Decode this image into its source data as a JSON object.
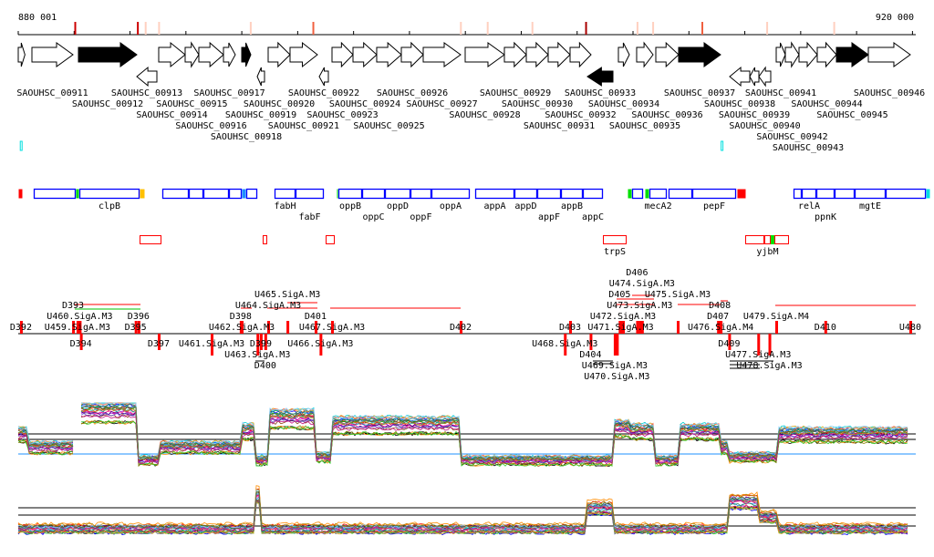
{
  "axis": {
    "start": 880001,
    "end": 920000,
    "start_label": "880 001",
    "end_label": "920 000"
  },
  "colors": {
    "gene_fill": "#000000",
    "feature_blue": "#0000ff",
    "feature_red": "#ff0000",
    "green": "#00e000",
    "cyan": "#00e0e0",
    "yellow": "#ffc000",
    "lightblue": "#1e90ff"
  },
  "genes": [
    {
      "name": "",
      "start": 880000,
      "end": 880300,
      "strand": "+",
      "filled": false
    },
    {
      "name": "SAOUHSC_00911",
      "start": 880612,
      "end": 882448,
      "strand": "+",
      "filled": false
    },
    {
      "name": "SAOUHSC_00912",
      "start": 882693,
      "end": 885304,
      "strand": "+",
      "filled": true
    },
    {
      "name": "SAOUHSC_00913",
      "start": 885304,
      "end": 886202,
      "strand": "-",
      "filled": false
    },
    {
      "name": "SAOUHSC_00914",
      "start": 886283,
      "end": 887466,
      "strand": "+",
      "filled": false
    },
    {
      "name": "SAOUHSC_00915",
      "start": 887466,
      "end": 888078,
      "strand": "+",
      "filled": false
    },
    {
      "name": "SAOUHSC_00916",
      "start": 888078,
      "end": 889180,
      "strand": "+",
      "filled": false
    },
    {
      "name": "SAOUHSC_00917",
      "start": 889180,
      "end": 889710,
      "strand": "+",
      "filled": false
    },
    {
      "name": "SAOUHSC_00918",
      "start": 889996,
      "end": 890404,
      "strand": "+",
      "filled": true
    },
    {
      "name": "SAOUHSC_00919",
      "start": 890690,
      "end": 891016,
      "strand": "-",
      "filled": false
    },
    {
      "name": "SAOUHSC_00920",
      "start": 891179,
      "end": 892158,
      "strand": "+",
      "filled": false
    },
    {
      "name": "SAOUHSC_00921",
      "start": 892158,
      "end": 893382,
      "strand": "+",
      "filled": false
    },
    {
      "name": "SAOUHSC_00922",
      "start": 893464,
      "end": 893872,
      "strand": "-",
      "filled": false
    },
    {
      "name": "SAOUHSC_00923",
      "start": 894035,
      "end": 894974,
      "strand": "+",
      "filled": false
    },
    {
      "name": "SAOUHSC_00924",
      "start": 894974,
      "end": 896034,
      "strand": "+",
      "filled": false
    },
    {
      "name": "SAOUHSC_00925",
      "start": 896034,
      "end": 897136,
      "strand": "+",
      "filled": false
    },
    {
      "name": "SAOUHSC_00926",
      "start": 897136,
      "end": 898115,
      "strand": "+",
      "filled": false
    },
    {
      "name": "SAOUHSC_00927",
      "start": 898115,
      "end": 899788,
      "strand": "+",
      "filled": false
    },
    {
      "name": "SAOUHSC_00928",
      "start": 899992,
      "end": 901746,
      "strand": "+",
      "filled": false
    },
    {
      "name": "SAOUHSC_00929",
      "start": 901746,
      "end": 902726,
      "strand": "+",
      "filled": false
    },
    {
      "name": "SAOUHSC_00930",
      "start": 902726,
      "end": 903705,
      "strand": "+",
      "filled": false
    },
    {
      "name": "SAOUHSC_00931",
      "start": 903705,
      "end": 904684,
      "strand": "+",
      "filled": false
    },
    {
      "name": "SAOUHSC_00932",
      "start": 904684,
      "end": 905622,
      "strand": "+",
      "filled": false
    },
    {
      "name": "SAOUHSC_00933",
      "start": 905459,
      "end": 906602,
      "strand": "-",
      "filled": true
    },
    {
      "name": "SAOUHSC_00934",
      "start": 906846,
      "end": 907336,
      "strand": "+",
      "filled": false
    },
    {
      "name": "SAOUHSC_00935",
      "start": 907662,
      "end": 908397,
      "strand": "+",
      "filled": false
    },
    {
      "name": "SAOUHSC_00936",
      "start": 908519,
      "end": 909539,
      "strand": "+",
      "filled": false
    },
    {
      "name": "SAOUHSC_00937",
      "start": 909539,
      "end": 911416,
      "strand": "+",
      "filled": true
    },
    {
      "name": "SAOUHSC_00938",
      "start": 911824,
      "end": 912722,
      "strand": "-",
      "filled": false
    },
    {
      "name": "SAOUHSC_00939",
      "start": 912722,
      "end": 913130,
      "strand": "-",
      "filled": false
    },
    {
      "name": "SAOUHSC_00940",
      "start": 913130,
      "end": 913660,
      "strand": "-",
      "filled": false
    },
    {
      "name": "SAOUHSC_00941",
      "start": 913905,
      "end": 914313,
      "strand": "+",
      "filled": false
    },
    {
      "name": "SAOUHSC_00942",
      "start": 914313,
      "end": 914925,
      "strand": "+",
      "filled": false
    },
    {
      "name": "SAOUHSC_00943",
      "start": 914925,
      "end": 915741,
      "strand": "+",
      "filled": false
    },
    {
      "name": "SAOUHSC_00944",
      "start": 915741,
      "end": 916598,
      "strand": "+",
      "filled": false
    },
    {
      "name": "SAOUHSC_00945",
      "start": 916598,
      "end": 918026,
      "strand": "+",
      "filled": true
    },
    {
      "name": "SAOUHSC_00946",
      "start": 918026,
      "end": 919902,
      "strand": "+",
      "filled": false
    }
  ],
  "markers_top": [
    {
      "pos": 882550,
      "color": "#cc0000"
    },
    {
      "pos": 885350,
      "color": "#cc0000"
    },
    {
      "pos": 885700,
      "color": "#ffd0c0"
    },
    {
      "pos": 886300,
      "color": "#ffd0c0"
    },
    {
      "pos": 890400,
      "color": "#ffd0c0"
    },
    {
      "pos": 893200,
      "color": "#f06040"
    },
    {
      "pos": 899800,
      "color": "#ffd0c0"
    },
    {
      "pos": 901000,
      "color": "#ffd0c0"
    },
    {
      "pos": 903000,
      "color": "#ffd0c0"
    },
    {
      "pos": 905400,
      "color": "#aa0000"
    },
    {
      "pos": 907700,
      "color": "#ffd0c0"
    },
    {
      "pos": 908400,
      "color": "#ffd0c0"
    },
    {
      "pos": 910600,
      "color": "#f06040"
    },
    {
      "pos": 913500,
      "color": "#ffd0c0"
    },
    {
      "pos": 916500,
      "color": "#ffd0c0"
    }
  ],
  "cyan_marks": [
    880050,
    911400
  ],
  "features": [
    {
      "label": "",
      "start": 880000,
      "end": 880204,
      "color": "#ff0000",
      "solid": true
    },
    {
      "label": "",
      "start": 880694,
      "end": 882570,
      "color": "#0000ff",
      "solid": false
    },
    {
      "label": "",
      "start": 882570,
      "end": 882734,
      "color": "#00e000",
      "solid": true
    },
    {
      "label": "clpB",
      "start": 882734,
      "end": 885426,
      "color": "#0000ff",
      "solid": false
    },
    {
      "label": "",
      "start": 885426,
      "end": 885671,
      "color": "#ffc000",
      "solid": true
    },
    {
      "label": "",
      "start": 886446,
      "end": 887630,
      "color": "#0000ff",
      "solid": false
    },
    {
      "label": "",
      "start": 887630,
      "end": 888282,
      "color": "#0000ff",
      "solid": false
    },
    {
      "label": "",
      "start": 888282,
      "end": 889425,
      "color": "#0000ff",
      "solid": false
    },
    {
      "label": "",
      "start": 889425,
      "end": 889996,
      "color": "#0000ff",
      "solid": false
    },
    {
      "label": "",
      "start": 889996,
      "end": 890200,
      "color": "#1e90ff",
      "solid": true
    },
    {
      "label": "",
      "start": 890200,
      "end": 890690,
      "color": "#0000ff",
      "solid": false
    },
    {
      "label": "fabH",
      "start": 891465,
      "end": 892403,
      "color": "#0000ff",
      "solid": false
    },
    {
      "label": "fabF",
      "start": 892403,
      "end": 893668,
      "color": "#0000ff",
      "solid": false
    },
    {
      "label": "",
      "start": 894239,
      "end": 894321,
      "color": "#00e000",
      "solid": true
    },
    {
      "label": "oppB",
      "start": 894321,
      "end": 895382,
      "color": "#0000ff",
      "solid": false
    },
    {
      "label": "oppC",
      "start": 895382,
      "end": 896402,
      "color": "#0000ff",
      "solid": false
    },
    {
      "label": "oppD",
      "start": 896402,
      "end": 897544,
      "color": "#0000ff",
      "solid": false
    },
    {
      "label": "oppF",
      "start": 897544,
      "end": 898482,
      "color": "#0000ff",
      "solid": false
    },
    {
      "label": "oppA",
      "start": 898482,
      "end": 900196,
      "color": "#0000ff",
      "solid": false
    },
    {
      "label": "appA",
      "start": 900441,
      "end": 902195,
      "color": "#0000ff",
      "solid": false
    },
    {
      "label": "appD",
      "start": 902195,
      "end": 903215,
      "color": "#0000ff",
      "solid": false
    },
    {
      "label": "appF",
      "start": 903215,
      "end": 904276,
      "color": "#0000ff",
      "solid": false
    },
    {
      "label": "appB",
      "start": 904276,
      "end": 905255,
      "color": "#0000ff",
      "solid": false
    },
    {
      "label": "appC",
      "start": 905255,
      "end": 906153,
      "color": "#0000ff",
      "solid": false
    },
    {
      "label": "",
      "start": 907254,
      "end": 907458,
      "color": "#00e000",
      "solid": true
    },
    {
      "label": "",
      "start": 907458,
      "end": 907948,
      "color": "#0000ff",
      "solid": false
    },
    {
      "label": "",
      "start": 908030,
      "end": 908234,
      "color": "#00e000",
      "solid": true
    },
    {
      "label": "mecA2",
      "start": 908234,
      "end": 909009,
      "color": "#0000ff",
      "solid": false
    },
    {
      "label": "",
      "start": 909090,
      "end": 910151,
      "color": "#0000ff",
      "solid": false
    },
    {
      "label": "pepF",
      "start": 910151,
      "end": 912110,
      "color": "#0000ff",
      "solid": false
    },
    {
      "label": "",
      "start": 912150,
      "end": 912558,
      "color": "#ff0000",
      "solid": true
    },
    {
      "label": "",
      "start": 914680,
      "end": 915047,
      "color": "#0000ff",
      "solid": false
    },
    {
      "label": "relA",
      "start": 915047,
      "end": 915700,
      "color": "#0000ff",
      "solid": false
    },
    {
      "label": "ppnK",
      "start": 915700,
      "end": 916516,
      "color": "#0000ff",
      "solid": false
    },
    {
      "label": "",
      "start": 916516,
      "end": 917414,
      "color": "#0000ff",
      "solid": false
    },
    {
      "label": "mgtE",
      "start": 917414,
      "end": 918801,
      "color": "#0000ff",
      "solid": false
    },
    {
      "label": "",
      "start": 918801,
      "end": 920600,
      "color": "#0000ff",
      "solid": false
    },
    {
      "label": "",
      "start": 920600,
      "end": 920800,
      "color": "#00e0e0",
      "solid": true
    }
  ],
  "rna_features": [
    {
      "label": "",
      "start": 885426,
      "end": 886406,
      "color": "#ff0000"
    },
    {
      "label": "",
      "start": 890934,
      "end": 891138,
      "color": "#ff0000"
    },
    {
      "label": "",
      "start": 893750,
      "end": 894158,
      "color": "#ff0000"
    },
    {
      "label": "trpS",
      "start": 906153,
      "end": 907214,
      "color": "#ff0000"
    },
    {
      "label": "",
      "start": 912518,
      "end": 913374,
      "color": "#ff0000"
    },
    {
      "label": "yjbM",
      "start": 913374,
      "end": 913660,
      "color": "#ff0000"
    },
    {
      "label": "",
      "start": 913660,
      "end": 913823,
      "color": "#00e000"
    },
    {
      "label": "",
      "start": 913823,
      "end": 914476,
      "color": "#ff0000"
    }
  ],
  "promoters": [
    {
      "label": "D392",
      "pos": 880120,
      "side": "up"
    },
    {
      "label": "D393",
      "pos": 882450,
      "side": "up"
    },
    {
      "label": "U459.SigA.M3",
      "pos": 882650,
      "side": "up"
    },
    {
      "label": "U460.SigA.M3",
      "pos": 882750,
      "side": "up"
    },
    {
      "label": "D395",
      "pos": 885250,
      "side": "up"
    },
    {
      "label": "D396",
      "pos": 885380,
      "side": "up"
    },
    {
      "label": "D394",
      "pos": 882800,
      "side": "down"
    },
    {
      "label": "D397",
      "pos": 886283,
      "side": "down"
    },
    {
      "label": "U461.SigA.M3",
      "pos": 888650,
      "side": "down"
    },
    {
      "label": "U463.SigA.M3",
      "pos": 890700,
      "side": "down"
    },
    {
      "label": "D398",
      "pos": 889950,
      "side": "up"
    },
    {
      "label": "U462.SigA.M3",
      "pos": 889996,
      "side": "up"
    },
    {
      "label": "D399",
      "pos": 890850,
      "side": "down"
    },
    {
      "label": "D400",
      "pos": 891050,
      "side": "down"
    },
    {
      "label": "U464.SigA.M3",
      "pos": 891180,
      "side": "up"
    },
    {
      "label": "U465.SigA.M3",
      "pos": 892040,
      "side": "up"
    },
    {
      "label": "D401",
      "pos": 893300,
      "side": "up"
    },
    {
      "label": "U466.SigA.M3",
      "pos": 893520,
      "side": "down"
    },
    {
      "label": "U467.SigA.M3",
      "pos": 894035,
      "side": "up"
    },
    {
      "label": "D402",
      "pos": 899788,
      "side": "up"
    },
    {
      "label": "D403",
      "pos": 904684,
      "side": "up"
    },
    {
      "label": "U468.SigA.M3",
      "pos": 904450,
      "side": "down"
    },
    {
      "label": "D404",
      "pos": 905600,
      "side": "down"
    },
    {
      "label": "U469.SigA.M3",
      "pos": 906680,
      "side": "down"
    },
    {
      "label": "U470.SigA.M3",
      "pos": 906780,
      "side": "down"
    },
    {
      "label": "D405",
      "pos": 906900,
      "side": "up"
    },
    {
      "label": "U471.SigA.M3",
      "pos": 906950,
      "side": "up"
    },
    {
      "label": "U472.SigA.M3",
      "pos": 907050,
      "side": "up"
    },
    {
      "label": "D406",
      "pos": 907680,
      "side": "up"
    },
    {
      "label": "U473.SigA.M3",
      "pos": 907800,
      "side": "up"
    },
    {
      "label": "U474.SigA.M3",
      "pos": 907900,
      "side": "up"
    },
    {
      "label": "U475.SigA.M3",
      "pos": 909500,
      "side": "up"
    },
    {
      "label": "D407",
      "pos": 911300,
      "side": "up"
    },
    {
      "label": "D408",
      "pos": 911380,
      "side": "up"
    },
    {
      "label": "U476.SigA.M4",
      "pos": 911420,
      "side": "up"
    },
    {
      "label": "D409",
      "pos": 911800,
      "side": "down"
    },
    {
      "label": "U477.SigA.M3",
      "pos": 913100,
      "side": "down"
    },
    {
      "label": "U478.SigA.M3",
      "pos": 913600,
      "side": "down"
    },
    {
      "label": "U479.SigA.M4",
      "pos": 913905,
      "side": "up"
    },
    {
      "label": "D410",
      "pos": 916100,
      "side": "up"
    },
    {
      "label": "U480",
      "pos": 919902,
      "side": "up"
    }
  ],
  "expression_panels": [
    {
      "segments": [
        [
          880000,
          880400,
          0.5
        ],
        [
          880400,
          882450,
          0.3
        ],
        [
          882693,
          885304,
          0.85
        ],
        [
          885304,
          886300,
          0.1
        ],
        [
          886300,
          889996,
          0.3
        ],
        [
          889996,
          890600,
          0.55
        ],
        [
          890600,
          891180,
          0.1
        ],
        [
          891180,
          893300,
          0.75
        ],
        [
          893300,
          894035,
          0.15
        ],
        [
          894035,
          899788,
          0.65
        ],
        [
          899788,
          906602,
          0.1
        ],
        [
          906602,
          907336,
          0.6
        ],
        [
          907336,
          908450,
          0.55
        ],
        [
          908450,
          909539,
          0.1
        ],
        [
          909539,
          911400,
          0.55
        ],
        [
          911400,
          911824,
          0.3
        ],
        [
          911824,
          913905,
          0.15
        ],
        [
          913905,
          919902,
          0.5
        ]
      ]
    },
    {
      "segments": [
        [
          880000,
          890600,
          0.25
        ],
        [
          890600,
          890800,
          0.8
        ],
        [
          890800,
          905459,
          0.25
        ],
        [
          905459,
          906602,
          0.6
        ],
        [
          906602,
          911824,
          0.25
        ],
        [
          911824,
          913100,
          0.7
        ],
        [
          913100,
          913905,
          0.45
        ],
        [
          913905,
          919902,
          0.25
        ]
      ]
    }
  ]
}
